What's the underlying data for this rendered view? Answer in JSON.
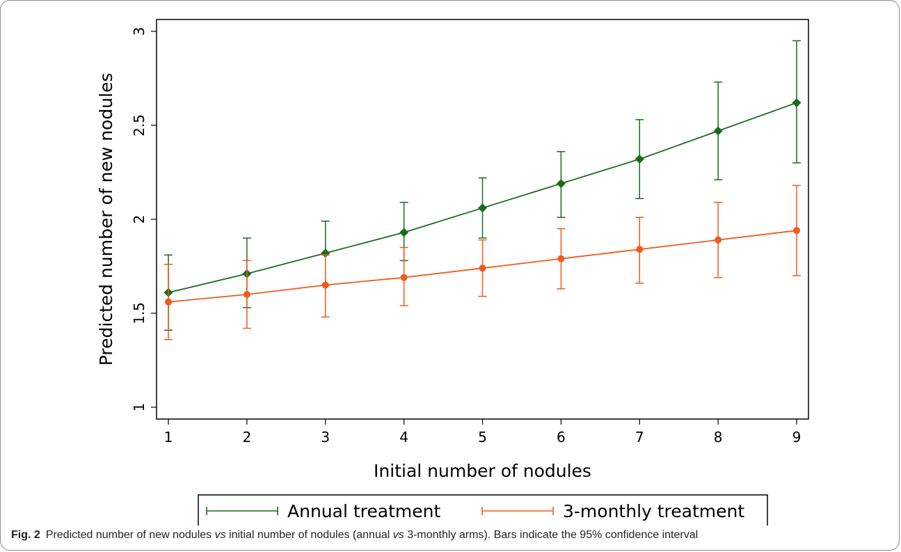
{
  "chart_data": {
    "type": "line",
    "xlabel": "Initial number of nodules",
    "ylabel": "Predicted number of new nodules",
    "xlim": [
      1,
      9
    ],
    "ylim": [
      1,
      3
    ],
    "x_ticks": [
      "1",
      "2",
      "3",
      "4",
      "5",
      "6",
      "7",
      "8",
      "9"
    ],
    "y_ticks": [
      "1",
      "1.5",
      "2",
      "2.5",
      "3"
    ],
    "y_tick_values": [
      1,
      1.5,
      2,
      2.5,
      3
    ],
    "grid": false,
    "legend_position": "bottom",
    "series": [
      {
        "name": "Annual treatment",
        "color": "#1a6b1a",
        "marker": "diamond",
        "x": [
          1,
          2,
          3,
          4,
          5,
          6,
          7,
          8,
          9
        ],
        "y": [
          1.61,
          1.71,
          1.82,
          1.93,
          2.06,
          2.19,
          2.32,
          2.47,
          2.62
        ],
        "ci_low": [
          1.41,
          1.53,
          1.65,
          1.78,
          1.9,
          2.01,
          2.11,
          2.21,
          2.3
        ],
        "ci_high": [
          1.81,
          1.9,
          1.99,
          2.09,
          2.22,
          2.36,
          2.53,
          2.73,
          2.95
        ]
      },
      {
        "name": "3-monthly treatment",
        "color": "#f05a1e",
        "marker": "circle",
        "x": [
          1,
          2,
          3,
          4,
          5,
          6,
          7,
          8,
          9
        ],
        "y": [
          1.56,
          1.6,
          1.65,
          1.69,
          1.74,
          1.79,
          1.84,
          1.89,
          1.94
        ],
        "ci_low": [
          1.36,
          1.42,
          1.48,
          1.54,
          1.59,
          1.63,
          1.66,
          1.69,
          1.7
        ],
        "ci_high": [
          1.76,
          1.78,
          1.81,
          1.85,
          1.89,
          1.95,
          2.01,
          2.09,
          2.18
        ]
      }
    ]
  },
  "caption": {
    "label": "Fig. 2",
    "part1": "Predicted number of new nodules ",
    "vs1": "vs",
    "part2": " initial number of nodules (annual ",
    "vs2": "vs",
    "part3": " 3-monthly arms). Bars indicate the 95% confidence interval"
  }
}
